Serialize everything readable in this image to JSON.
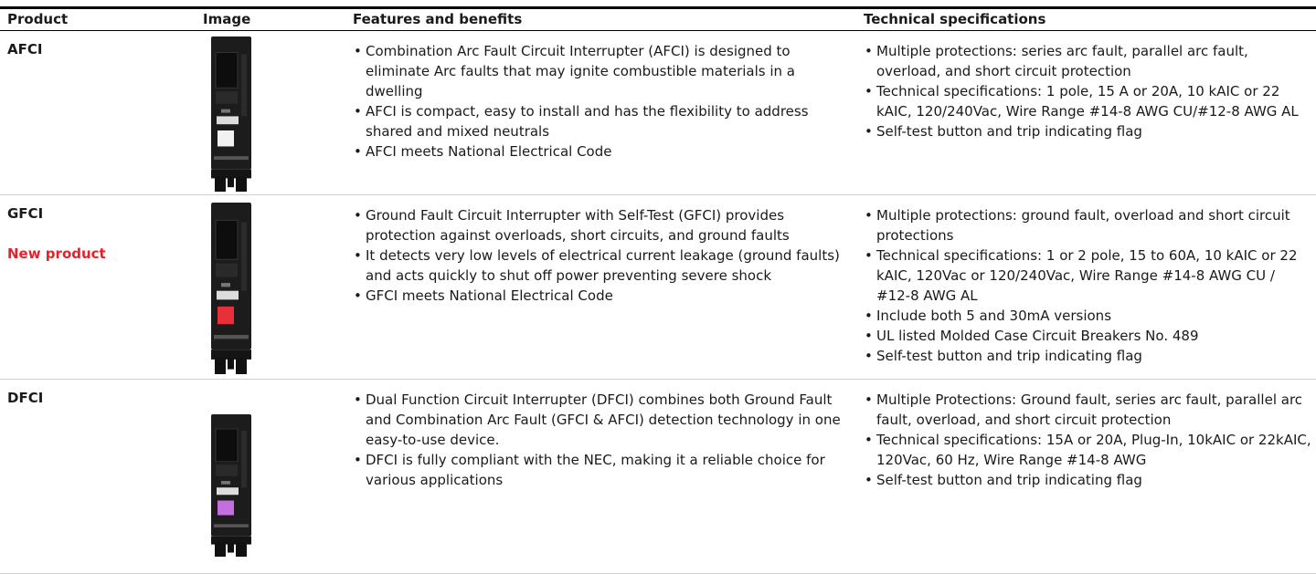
{
  "table": {
    "headers": [
      "Product",
      "Image",
      "Features and benefits",
      "Technical specifications"
    ],
    "rows": [
      {
        "product": "AFCI",
        "features": [
          "Combination Arc Fault Circuit Interrupter (AFCI) is designed to eliminate Arc faults that may ignite combustible materials in a dwelling",
          "AFCI is compact, easy to install and has the flexibility to address shared and mixed neutrals",
          "AFCI meets National Electrical Code"
        ],
        "specs": [
          "Multiple protections: series arc fault, parallel arc fault, overload, and short circuit protection",
          "Technical specifications: 1 pole, 15 A or 20A, 10 kAIC or 22 kAIC, 120/240Vac, Wire Range #14-8 AWG CU/#12-8 AWG AL",
          "Self-test button and trip indicating flag"
        ]
      },
      {
        "product": "GFCI",
        "tag": "New product",
        "features": [
          "Ground Fault Circuit Interrupter with Self-Test (GFCI) provides protection against overloads, short circuits, and ground faults",
          "It detects very low levels of electrical current leakage (ground faults) and acts quickly to shut off power preventing severe shock",
          "GFCI meets National Electrical Code"
        ],
        "specs": [
          "Multiple protections: ground fault, overload and short circuit protections",
          "Technical specifications: 1 or 2 pole, 15 to 60A, 10 kAIC or 22 kAIC, 120Vac or 120/240Vac, Wire Range #14-8 AWG CU / #12-8 AWG AL",
          "Include both 5 and 30mA versions",
          "UL listed Molded Case Circuit Breakers No. 489",
          "Self-test button and trip indicating flag"
        ]
      },
      {
        "product": "DFCI",
        "features": [
          "Dual Function Circuit Interrupter (DFCI) combines both Ground Fault and Combination Arc Fault (GFCI & AFCI) detection technology in one easy-to-use device.",
          "DFCI is fully compliant with the NEC, making it a reliable choice for various applications"
        ],
        "specs": [
          "Multiple Protections: Ground fault, series arc fault, parallel arc fault, overload, and short circuit protection",
          "Technical specifications: 15A or 20A, Plug-In, 10kAIC or 22kAIC, 120Vac, 60 Hz, Wire Range #14-8 AWG",
          "Self-test button and trip indicating flag"
        ]
      }
    ]
  }
}
